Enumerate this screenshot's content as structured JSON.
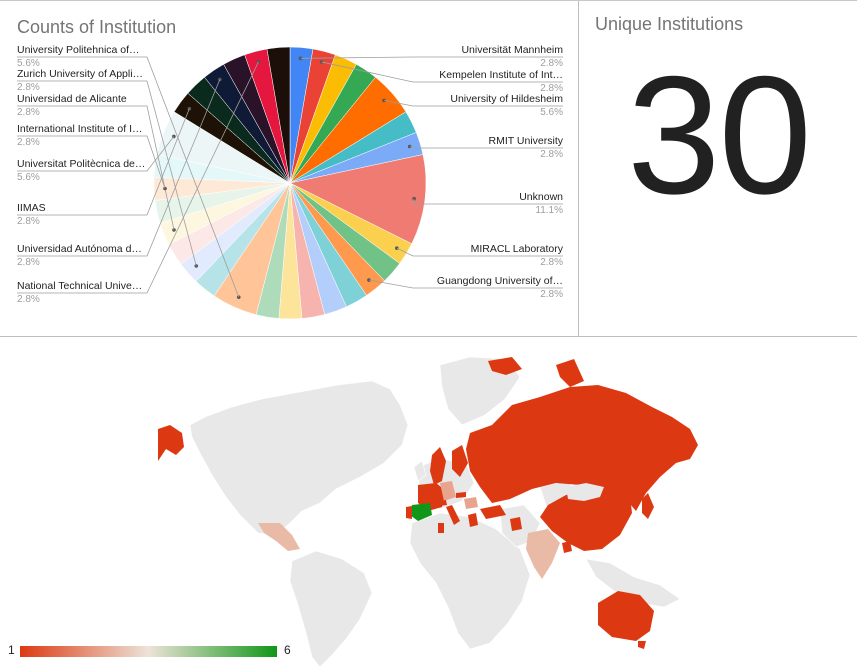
{
  "pie_panel": {
    "title": "Counts of Institution"
  },
  "kpi_panel": {
    "title": "Unique Institutions",
    "value": "30"
  },
  "chart_data": [
    {
      "type": "pie",
      "title": "Counts of Institution",
      "slices": [
        {
          "label": "Universität Mannheim",
          "display": "Universität Mannheim",
          "percent": 2.8,
          "color": "#4285f4",
          "shown": true,
          "side": "right"
        },
        {
          "label": "Kempelen Institute of Int…",
          "display": "Kempelen Institute of Int…",
          "percent": 2.8,
          "color": "#ea4335",
          "shown": true,
          "side": "right"
        },
        {
          "label": "",
          "percent": 2.8,
          "color": "#fbbc04",
          "shown": false
        },
        {
          "label": "",
          "percent": 2.8,
          "color": "#34a853",
          "shown": false
        },
        {
          "label": "University of Hildesheim",
          "display": "University of Hildesheim",
          "percent": 5.6,
          "color": "#ff6d01",
          "shown": true,
          "side": "right"
        },
        {
          "label": "",
          "percent": 2.8,
          "color": "#46bdc6",
          "shown": false
        },
        {
          "label": "RMIT University",
          "display": "RMIT University",
          "percent": 2.8,
          "color": "#7baaf7",
          "shown": true,
          "side": "right"
        },
        {
          "label": "Unknown",
          "display": "Unknown",
          "percent": 11.1,
          "color": "#f07b72",
          "shown": true,
          "side": "right"
        },
        {
          "label": "MIRACL Laboratory",
          "display": "MIRACL Laboratory",
          "percent": 2.8,
          "color": "#fcd04f",
          "shown": true,
          "side": "right"
        },
        {
          "label": "",
          "percent": 2.8,
          "color": "#71c287",
          "shown": false
        },
        {
          "label": "Guangdong University of…",
          "display": "Guangdong University of…",
          "percent": 2.8,
          "color": "#ff994d",
          "shown": true,
          "side": "right"
        },
        {
          "label": "",
          "percent": 2.8,
          "color": "#7ed1d7",
          "shown": false
        },
        {
          "label": "",
          "percent": 2.8,
          "color": "#b3cefb",
          "shown": false
        },
        {
          "label": "",
          "percent": 2.8,
          "color": "#f7b4ae",
          "shown": false
        },
        {
          "label": "",
          "percent": 2.8,
          "color": "#fde49b",
          "shown": false
        },
        {
          "label": "",
          "percent": 2.8,
          "color": "#aedcba",
          "shown": false
        },
        {
          "label": "University Politehnica of…",
          "display": "University Politehnica of…",
          "percent": 5.6,
          "color": "#ffc599",
          "shown": true,
          "side": "left"
        },
        {
          "label": "",
          "percent": 2.8,
          "color": "#b5e3e7",
          "shown": false
        },
        {
          "label": "Zurich University of Appli…",
          "display": "Zurich University of Appli…",
          "percent": 2.8,
          "color": "#e1ebfd",
          "shown": true,
          "side": "left"
        },
        {
          "label": "",
          "percent": 2.8,
          "color": "#fce8e6",
          "shown": false
        },
        {
          "label": "Universidad de Alicante",
          "display": "Universidad de Alicante",
          "percent": 2.8,
          "color": "#fef7e0",
          "shown": true,
          "side": "left"
        },
        {
          "label": "",
          "percent": 2.8,
          "color": "#e6f4ea",
          "shown": false
        },
        {
          "label": "International Institute of I…",
          "display": "International Institute of I…",
          "percent": 2.8,
          "color": "#fee8d6",
          "shown": true,
          "side": "left"
        },
        {
          "label": "",
          "percent": 2.8,
          "color": "#e4f7f9",
          "shown": false
        },
        {
          "label": "Universitat Politècnica de…",
          "display": "Universitat Politècnica de…",
          "percent": 5.6,
          "color": "#ecf6f6",
          "shown": true,
          "side": "left"
        },
        {
          "label": "IIMAS",
          "display": "IIMAS",
          "percent": 2.8,
          "color": "#1d1205",
          "shown": true,
          "side": "left"
        },
        {
          "label": "",
          "percent": 2.8,
          "color": "#0b2a1e",
          "shown": false
        },
        {
          "label": "Universidad Autónoma d…",
          "display": "Universidad Autónoma d…",
          "percent": 2.8,
          "color": "#0f1a36",
          "shown": true,
          "side": "left"
        },
        {
          "label": "",
          "percent": 2.8,
          "color": "#2a1228",
          "shown": false
        },
        {
          "label": "National Technical Unive…",
          "display": "National Technical Unive…",
          "percent": 2.8,
          "color": "#e5173f",
          "shown": true,
          "side": "left"
        },
        {
          "label": "",
          "percent": 2.8,
          "color": "#1c0f0a",
          "shown": false
        }
      ]
    },
    {
      "type": "geo",
      "colorAxis": {
        "min": 1,
        "max": 6,
        "minLabel": "1",
        "maxLabel": "6",
        "colors": [
          "#dc3912",
          "#ede3d8",
          "#109618"
        ]
      },
      "countries": [
        {
          "name": "Spain",
          "value": 6
        },
        {
          "name": "Russia",
          "value": 1
        },
        {
          "name": "China",
          "value": 1
        },
        {
          "name": "Australia",
          "value": 1
        },
        {
          "name": "India",
          "value": 2
        },
        {
          "name": "Mexico",
          "value": 2
        },
        {
          "name": "Germany",
          "value": 3
        },
        {
          "name": "Slovakia",
          "value": 1
        },
        {
          "name": "Romania",
          "value": 2
        },
        {
          "name": "Switzerland",
          "value": 1
        },
        {
          "name": "Tunisia",
          "value": 1
        },
        {
          "name": "Sweden",
          "value": 1
        },
        {
          "name": "Finland",
          "value": 1
        },
        {
          "name": "Alaska (USA)",
          "value": 1
        }
      ]
    }
  ]
}
